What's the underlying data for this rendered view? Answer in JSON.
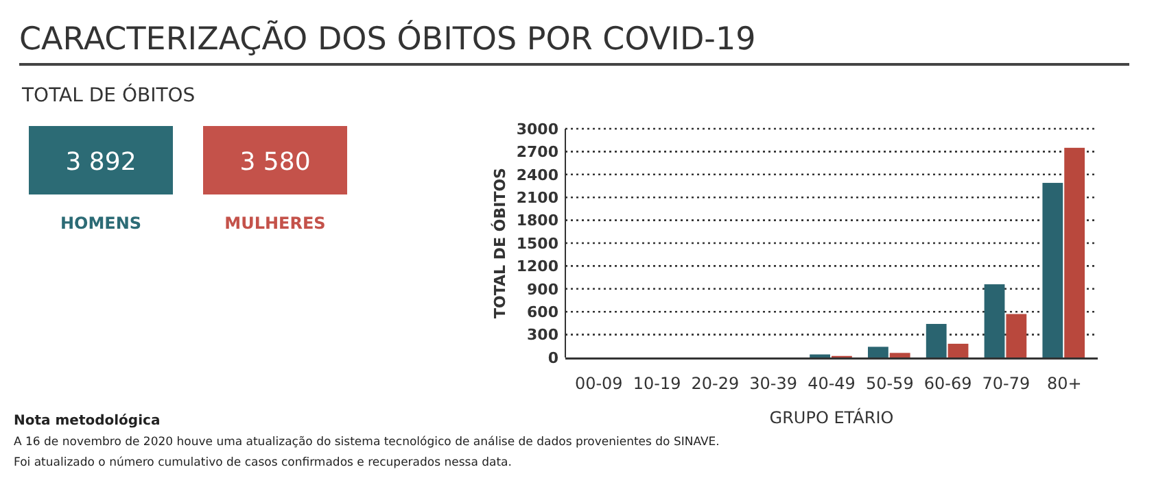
{
  "chart_data": [
    {
      "type": "other",
      "title": "CARACTERIZAÇÃO DOS ÓBITOS POR COVID-19",
      "subtitle": "TOTAL DE ÓBITOS",
      "categories": [
        "HOMENS",
        "MULHERES"
      ],
      "values": [
        3892,
        3580
      ],
      "data_labels": true,
      "colors": [
        "#2c6b75",
        "#c4524a"
      ],
      "annotations": [
        "Nota metodológica",
        "A 16 de novembro de 2020 houve uma atualização do sistema tecnológico de análise de dados provenientes do SINAVE.",
        "Foi atualizado o número cumulativo de casos confirmados e recuperados nessa data."
      ]
    },
    {
      "type": "bar",
      "xlabel": "GRUPO ETÁRIO",
      "ylabel": "TOTAL DE ÓBITOS",
      "categories": [
        "00-09",
        "10-19",
        "20-29",
        "30-39",
        "40-49",
        "50-59",
        "60-69",
        "70-79",
        "80+"
      ],
      "series": [
        {
          "color": "#2a6470",
          "values": [
            0,
            0,
            0,
            0,
            40,
            140,
            440,
            960,
            2290
          ]
        },
        {
          "color": "#b9483d",
          "values": [
            0,
            0,
            0,
            0,
            20,
            60,
            180,
            570,
            2750
          ]
        }
      ],
      "ylim": [
        0,
        3000
      ],
      "yticks": [
        0,
        300,
        600,
        900,
        1200,
        1500,
        1800,
        2100,
        2400,
        2700,
        3000
      ],
      "grid": "y"
    }
  ]
}
